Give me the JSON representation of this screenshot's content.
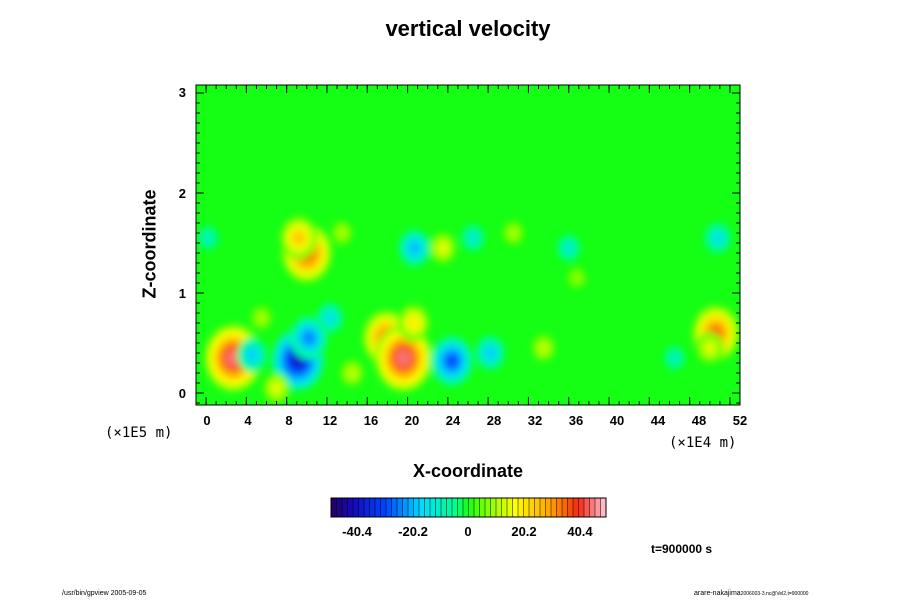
{
  "chart_data": {
    "type": "heatmap",
    "title": "vertical velocity",
    "xlabel": "X-coordinate",
    "ylabel": "Z-coordinate",
    "x_unit": "(×1E4 m)",
    "y_unit": "(×1E5 m)",
    "x_ticks": [
      "0",
      "4",
      "8",
      "12",
      "16",
      "20",
      "24",
      "28",
      "32",
      "36",
      "40",
      "44",
      "48",
      "52"
    ],
    "y_ticks": [
      "0",
      "1",
      "2",
      "3"
    ],
    "xlim": [
      -1,
      53
    ],
    "ylim": [
      -0.12,
      3.08
    ],
    "colorbar": {
      "ticks": [
        "-40.4",
        "-20.2",
        "0",
        "20.2",
        "40.4"
      ],
      "range": [
        -50.5,
        50.5
      ]
    },
    "time_label": "t=900000 s",
    "features": [
      {
        "x": 2.7,
        "z": 0.35,
        "value": 45
      },
      {
        "x": 4.6,
        "z": 0.38,
        "value": -18
      },
      {
        "x": 9.1,
        "z": 0.33,
        "value": -40
      },
      {
        "x": 10.2,
        "z": 0.55,
        "value": -25
      },
      {
        "x": 12.3,
        "z": 0.75,
        "value": -15
      },
      {
        "x": 17.9,
        "z": 0.55,
        "value": 35
      },
      {
        "x": 19.6,
        "z": 0.35,
        "value": 45
      },
      {
        "x": 20.6,
        "z": 0.7,
        "value": 20
      },
      {
        "x": 24.4,
        "z": 0.32,
        "value": -30
      },
      {
        "x": 28.2,
        "z": 0.4,
        "value": -18
      },
      {
        "x": 50.6,
        "z": 0.6,
        "value": 35
      },
      {
        "x": 50.0,
        "z": 0.45,
        "value": 15
      },
      {
        "x": 5.5,
        "z": 0.75,
        "value": 10
      },
      {
        "x": 14.5,
        "z": 0.2,
        "value": 12
      },
      {
        "x": 10.0,
        "z": 1.4,
        "value": 38
      },
      {
        "x": 9.2,
        "z": 1.55,
        "value": 25
      },
      {
        "x": 20.7,
        "z": 1.45,
        "value": -20
      },
      {
        "x": 26.5,
        "z": 1.55,
        "value": -12
      },
      {
        "x": 36.0,
        "z": 1.45,
        "value": -12
      },
      {
        "x": 50.8,
        "z": 1.55,
        "value": -15
      },
      {
        "x": 13.5,
        "z": 1.6,
        "value": 10
      },
      {
        "x": 23.5,
        "z": 1.45,
        "value": 15
      },
      {
        "x": 30.5,
        "z": 1.6,
        "value": 10
      },
      {
        "x": 36.8,
        "z": 1.15,
        "value": 8
      },
      {
        "x": 0.2,
        "z": 1.55,
        "value": -10
      },
      {
        "x": 33.5,
        "z": 0.45,
        "value": 12
      },
      {
        "x": 46.5,
        "z": 0.35,
        "value": -10
      },
      {
        "x": 7.0,
        "z": 0.05,
        "value": 15
      }
    ]
  },
  "footer": {
    "left": "/usr/bin/gpview 2005-09-05",
    "right_main": "arare-nakajima",
    "right_sub": "2006003-3.nc@Vel2,t=900000"
  }
}
